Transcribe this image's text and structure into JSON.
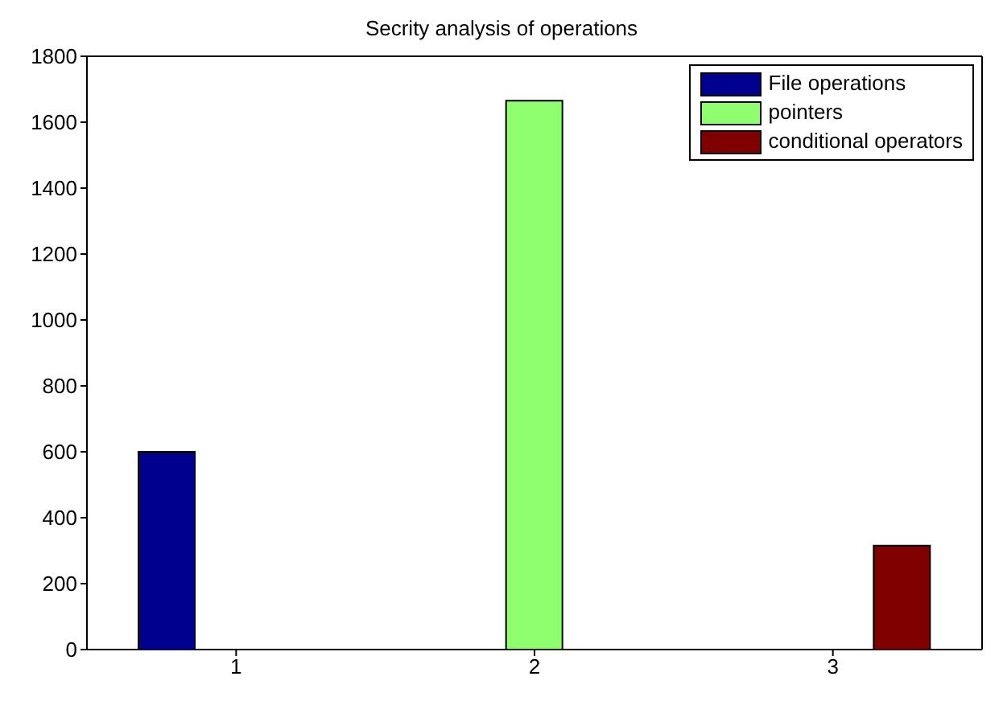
{
  "chart_data": {
    "type": "bar",
    "title": "Secrity analysis of operations",
    "categories": [
      "1",
      "2",
      "3"
    ],
    "series": [
      {
        "name": "File operations",
        "color": "#00008f",
        "values": [
          600,
          null,
          null
        ]
      },
      {
        "name": "pointers",
        "color": "#8fff70",
        "values": [
          null,
          1665,
          null
        ]
      },
      {
        "name": "conditional operators",
        "color": "#800000",
        "values": [
          null,
          null,
          315
        ]
      }
    ],
    "ylim": [
      0,
      1800
    ],
    "yticks": [
      0,
      200,
      400,
      600,
      800,
      1000,
      1200,
      1400,
      1600,
      1800
    ],
    "grid": false,
    "legend": "top right"
  }
}
